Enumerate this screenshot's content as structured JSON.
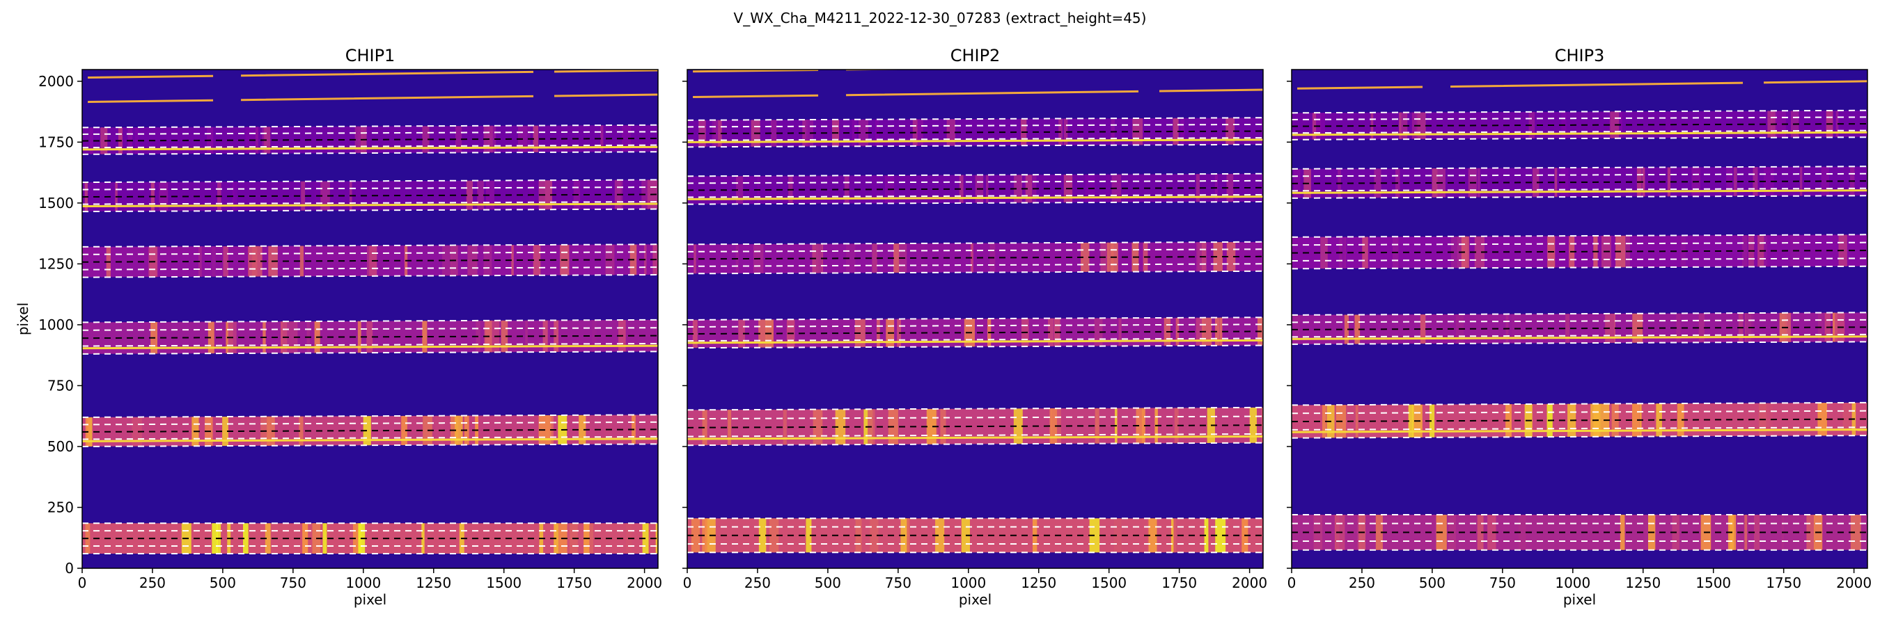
{
  "chart_data": {
    "type": "heatmap",
    "title": "V_WX_Cha_M4211_2022-12-30_07283  (extract_height=45)",
    "colormap": "plasma",
    "xlim": [
      0,
      2048
    ],
    "ylim": [
      0,
      2048
    ],
    "xticks": [
      0,
      250,
      500,
      750,
      1000,
      1250,
      1500,
      1750,
      2000
    ],
    "yticks": [
      0,
      250,
      500,
      750,
      1000,
      1250,
      1500,
      1750,
      2000
    ],
    "grid": false,
    "panels": [
      {
        "title": "CHIP1",
        "xlabel": "pixel",
        "ylabel": "pixel",
        "orders": [
          {
            "trace_low": 60,
            "trace_high": 185,
            "slope": 0.0,
            "level": 0.95,
            "has_line": false
          },
          {
            "trace_low": 500,
            "trace_high": 620,
            "slope": 0.005,
            "level": 0.85,
            "has_line": true
          },
          {
            "trace_low": 880,
            "trace_high": 1010,
            "slope": 0.005,
            "level": 0.62,
            "has_line": true
          },
          {
            "trace_low": 1195,
            "trace_high": 1320,
            "slope": 0.005,
            "level": 0.55,
            "has_line": false
          },
          {
            "trace_low": 1465,
            "trace_high": 1585,
            "slope": 0.005,
            "level": 0.4,
            "has_line": true
          },
          {
            "trace_low": 1700,
            "trace_high": 1810,
            "slope": 0.005,
            "level": 0.4,
            "has_line": true
          }
        ],
        "top_lines": [
          1915,
          2015
        ]
      },
      {
        "title": "CHIP2",
        "xlabel": "pixel",
        "ylabel": "",
        "orders": [
          {
            "trace_low": 65,
            "trace_high": 205,
            "slope": 0.0,
            "level": 0.95,
            "has_line": false
          },
          {
            "trace_low": 505,
            "trace_high": 650,
            "slope": 0.005,
            "level": 0.85,
            "has_line": true
          },
          {
            "trace_low": 905,
            "trace_high": 1020,
            "slope": 0.005,
            "level": 0.6,
            "has_line": true
          },
          {
            "trace_low": 1210,
            "trace_high": 1330,
            "slope": 0.005,
            "level": 0.55,
            "has_line": false
          },
          {
            "trace_low": 1495,
            "trace_high": 1610,
            "slope": 0.005,
            "level": 0.4,
            "has_line": true
          },
          {
            "trace_low": 1730,
            "trace_high": 1840,
            "slope": 0.005,
            "level": 0.4,
            "has_line": true
          }
        ],
        "top_lines": [
          1935,
          2040
        ]
      },
      {
        "title": "CHIP3",
        "xlabel": "pixel",
        "ylabel": "",
        "orders": [
          {
            "trace_low": 75,
            "trace_high": 220,
            "slope": 0.0,
            "level": 0.7,
            "has_line": false
          },
          {
            "trace_low": 535,
            "trace_high": 670,
            "slope": 0.005,
            "level": 0.9,
            "has_line": true
          },
          {
            "trace_low": 920,
            "trace_high": 1040,
            "slope": 0.005,
            "level": 0.6,
            "has_line": true
          },
          {
            "trace_low": 1230,
            "trace_high": 1360,
            "slope": 0.005,
            "level": 0.5,
            "has_line": false
          },
          {
            "trace_low": 1520,
            "trace_high": 1640,
            "slope": 0.005,
            "level": 0.4,
            "has_line": true
          },
          {
            "trace_low": 1760,
            "trace_high": 1870,
            "slope": 0.005,
            "level": 0.4,
            "has_line": true
          }
        ],
        "top_lines": [
          1970
        ]
      }
    ]
  }
}
